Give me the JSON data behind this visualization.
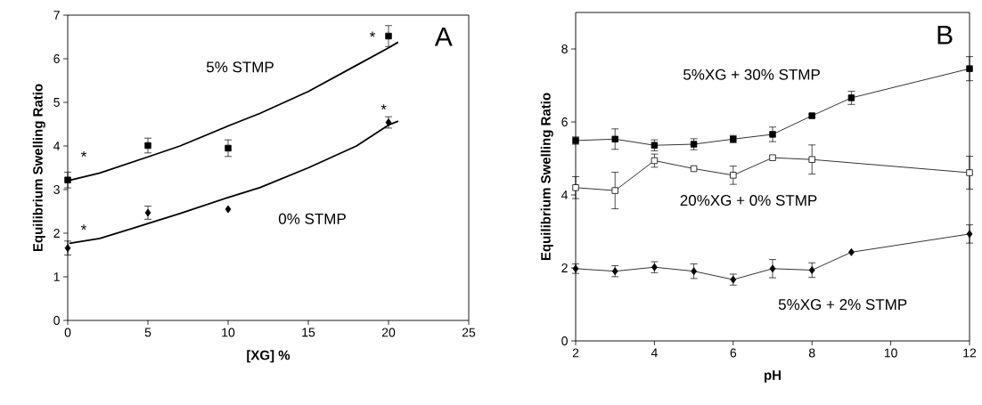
{
  "chart_data": [
    {
      "type": "scatter",
      "xlabel": "[XG] %",
      "ylabel": "Equilibrium Swelling Ratio",
      "xlim": [
        0,
        25
      ],
      "ylim": [
        0,
        7
      ],
      "xticks": [
        0,
        5,
        10,
        15,
        20,
        25
      ],
      "yticks": [
        0,
        1,
        2,
        3,
        4,
        5,
        6,
        7
      ],
      "series": [
        {
          "type": "line",
          "marker": "none",
          "color": "#000000",
          "x": [
            0.1,
            2,
            5,
            7,
            10,
            12,
            15,
            18,
            20,
            20.6
          ],
          "values": [
            3.21,
            3.38,
            3.75,
            4.0,
            4.46,
            4.75,
            5.25,
            5.85,
            6.25,
            6.38
          ]
        },
        {
          "type": "line",
          "marker": "none",
          "color": "#000000",
          "x": [
            0.1,
            2,
            5,
            7,
            10,
            12,
            15,
            18,
            20,
            20.6
          ],
          "values": [
            1.77,
            1.88,
            2.22,
            2.45,
            2.82,
            3.05,
            3.5,
            4.0,
            4.48,
            4.57
          ]
        },
        {
          "marker": "square",
          "color": "#000000",
          "x": [
            0,
            5,
            10,
            20
          ],
          "values": [
            3.22,
            4.01,
            3.95,
            6.52
          ],
          "errors": [
            0.18,
            0.17,
            0.19,
            0.24
          ]
        },
        {
          "marker": "diamond",
          "color": "#000000",
          "x": [
            0,
            5,
            10,
            20
          ],
          "values": [
            1.66,
            2.47,
            2.55,
            4.54
          ],
          "errors": [
            0.16,
            0.15,
            null,
            0.13
          ]
        }
      ],
      "annotations": [
        "A",
        "5% STMP",
        "0% STMP",
        "*",
        "*",
        "*",
        "*"
      ]
    },
    {
      "type": "line",
      "marker": "square",
      "xlabel": "pH",
      "ylabel": "Equilibrium Swelling Ratio",
      "xlim": [
        2,
        12
      ],
      "ylim": [
        0,
        9
      ],
      "xticks": [
        2,
        4,
        6,
        8,
        10,
        12
      ],
      "yticks": [
        0,
        2,
        4,
        6,
        8
      ],
      "series": [
        {
          "color": "#000000",
          "x": [
            2,
            3,
            4,
            5,
            6,
            7,
            8,
            9,
            12
          ],
          "values": [
            5.49,
            5.53,
            5.36,
            5.39,
            5.53,
            5.66,
            6.17,
            6.66,
            7.46
          ],
          "errors": [
            0.1,
            0.28,
            0.15,
            0.15,
            0.1,
            0.2,
            0.05,
            0.18,
            0.33
          ]
        },
        {
          "color": "#ffffff",
          "x": [
            2,
            3,
            4,
            5,
            6,
            7,
            8,
            12
          ],
          "values": [
            4.2,
            4.12,
            4.94,
            4.72,
            4.54,
            5.02,
            4.97,
            4.61
          ],
          "errors": [
            0.3,
            0.5,
            0.18,
            null,
            0.25,
            null,
            0.4,
            0.45
          ]
        },
        {
          "marker": "diamond",
          "color": "#000000",
          "x": [
            2,
            3,
            4,
            5,
            6,
            7,
            8,
            9,
            12
          ],
          "values": [
            1.98,
            1.91,
            2.02,
            1.91,
            1.68,
            1.98,
            1.94,
            2.43,
            2.93
          ],
          "errors": [
            0.13,
            0.15,
            0.15,
            0.2,
            0.15,
            0.25,
            0.2,
            null,
            0.25
          ]
        }
      ],
      "annotations": [
        "B",
        "5%XG + 30% STMP",
        "20%XG + 0% STMP",
        "5%XG + 2% STMP"
      ]
    }
  ]
}
